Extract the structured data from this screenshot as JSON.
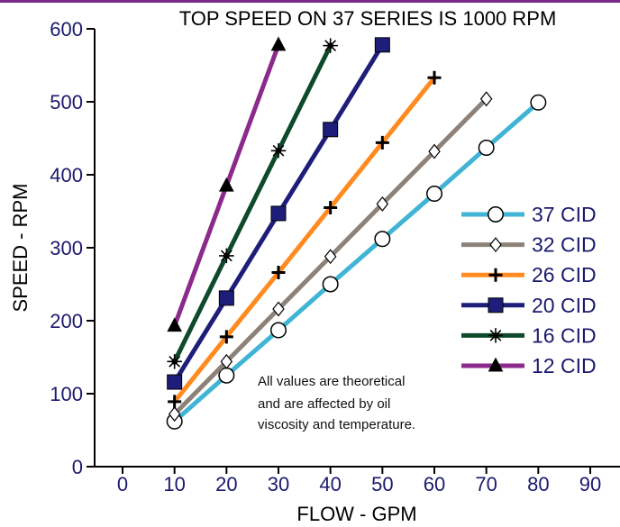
{
  "chart_data": {
    "type": "line",
    "title": "TOP SPEED ON 37 SERIES IS 1000 RPM",
    "xlabel": "FLOW - GPM",
    "ylabel": "SPEED - RPM",
    "xlim": [
      0,
      90
    ],
    "ylim": [
      0,
      600
    ],
    "x_ticks": [
      "0",
      "10",
      "20",
      "30",
      "40",
      "50",
      "60",
      "70",
      "80",
      "90"
    ],
    "y_ticks": [
      "0",
      "100",
      "200",
      "300",
      "400",
      "500",
      "600"
    ],
    "legend_position": "right",
    "grid": false,
    "note": [
      "All values are theoretical",
      "and are affected by oil",
      "viscosity and temperature."
    ],
    "series": [
      {
        "name": "37 CID",
        "color": "#3fb4d4",
        "marker": "circle",
        "x": [
          10,
          20,
          30,
          40,
          50,
          60,
          70,
          80
        ],
        "y": [
          62,
          125,
          187,
          250,
          312,
          374,
          437,
          499
        ]
      },
      {
        "name": "32 CID",
        "color": "#8c8279",
        "marker": "diamond",
        "x": [
          10,
          20,
          30,
          40,
          50,
          60,
          70
        ],
        "y": [
          72,
          144,
          216,
          288,
          360,
          432,
          504
        ]
      },
      {
        "name": "26 CID",
        "color": "#ff8a1f",
        "marker": "plus",
        "x": [
          10,
          20,
          30,
          40,
          50,
          60
        ],
        "y": [
          89,
          178,
          266,
          355,
          444,
          533
        ]
      },
      {
        "name": "20 CID",
        "color": "#1e1e7a",
        "marker": "square",
        "x": [
          10,
          20,
          30,
          40,
          50
        ],
        "y": [
          116,
          231,
          347,
          462,
          578
        ]
      },
      {
        "name": "16 CID",
        "color": "#0e4a2a",
        "marker": "star",
        "x": [
          10,
          20,
          30,
          40
        ],
        "y": [
          144,
          289,
          433,
          577
        ]
      },
      {
        "name": "12 CID",
        "color": "#8c2a8c",
        "marker": "triangle",
        "x": [
          10,
          20,
          30
        ],
        "y": [
          193,
          385,
          578
        ]
      }
    ]
  }
}
